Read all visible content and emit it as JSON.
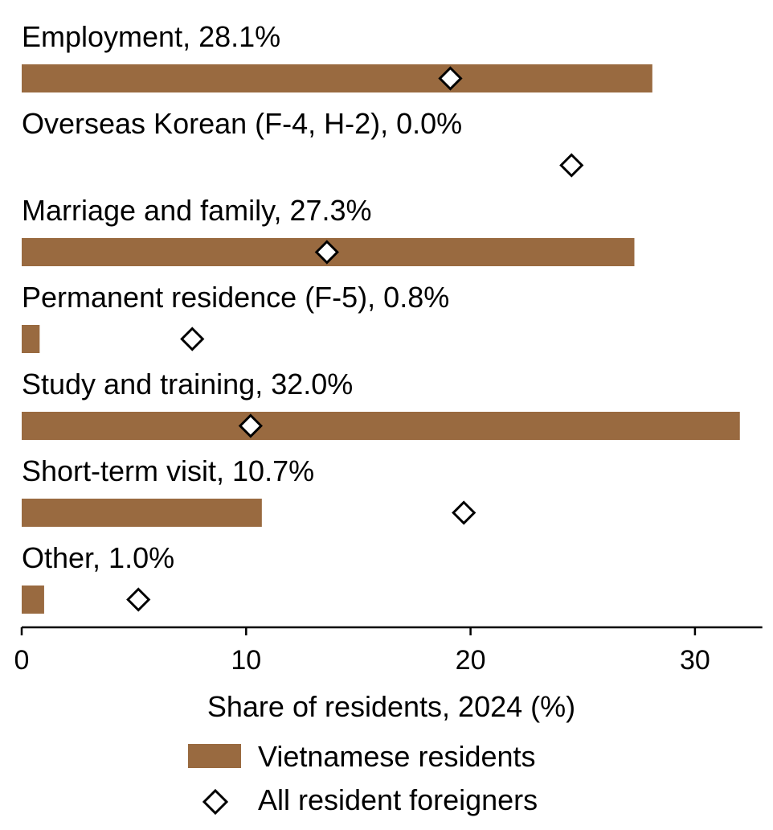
{
  "chart_data": {
    "type": "bar",
    "orientation": "horizontal",
    "categories": [
      "Employment",
      "Overseas Korean (F-4, H-2)",
      "Marriage and family",
      "Permanent residence (F-5)",
      "Study and training",
      "Short-term visit",
      "Other"
    ],
    "category_labels": [
      "Employment, 28.1%",
      "Overseas Korean (F-4, H-2), 0.0%",
      "Marriage and family, 27.3%",
      "Permanent residence (F-5), 0.8%",
      "Study and training, 32.0%",
      "Short-term visit, 10.7%",
      "Other, 1.0%"
    ],
    "series": [
      {
        "name": "Vietnamese residents",
        "mark": "bar",
        "color": "#996a40",
        "values": [
          28.1,
          0.0,
          27.3,
          0.8,
          32.0,
          10.7,
          1.0
        ]
      },
      {
        "name": "All resident foreigners",
        "mark": "diamond",
        "color": "#ffffff",
        "values": [
          19.1,
          24.5,
          13.6,
          7.6,
          10.2,
          19.7,
          5.2
        ]
      }
    ],
    "title": "",
    "xlabel": "Share of residents, 2024 (%)",
    "ylabel": "",
    "xlim": [
      0,
      33
    ],
    "xticks": [
      0,
      10,
      20,
      30
    ],
    "xtick_labels": [
      "0",
      "10",
      "20",
      "30"
    ],
    "grid": false,
    "legend_position": "bottom-center"
  }
}
